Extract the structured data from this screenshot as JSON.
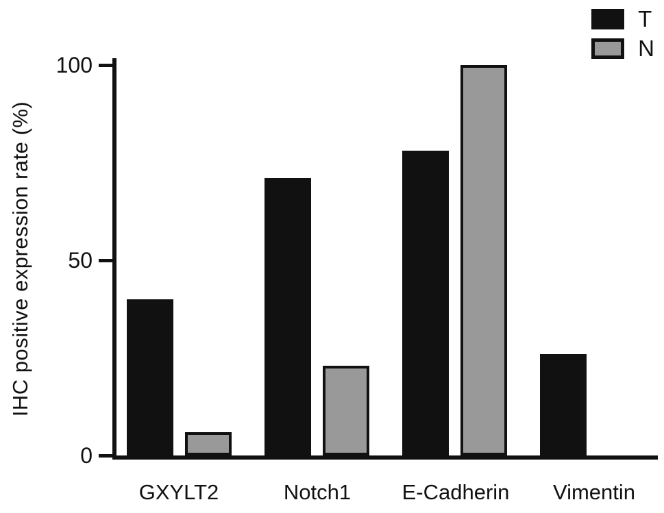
{
  "chart_data": {
    "type": "bar",
    "title": "",
    "xlabel": "",
    "ylabel": "IHC positive expression rate (%)",
    "categories": [
      "GXYLT2",
      "Notch1",
      "E-Cadherin",
      "Vimentin"
    ],
    "series": [
      {
        "name": "T",
        "color": "#111111",
        "values": [
          40,
          71,
          78,
          26
        ]
      },
      {
        "name": "N",
        "color": "#999999",
        "values": [
          6,
          23,
          100,
          0
        ]
      }
    ],
    "ylim": [
      0,
      100
    ],
    "yticks": [
      0,
      50,
      100
    ],
    "grid": false,
    "legend_position": "top-right"
  }
}
